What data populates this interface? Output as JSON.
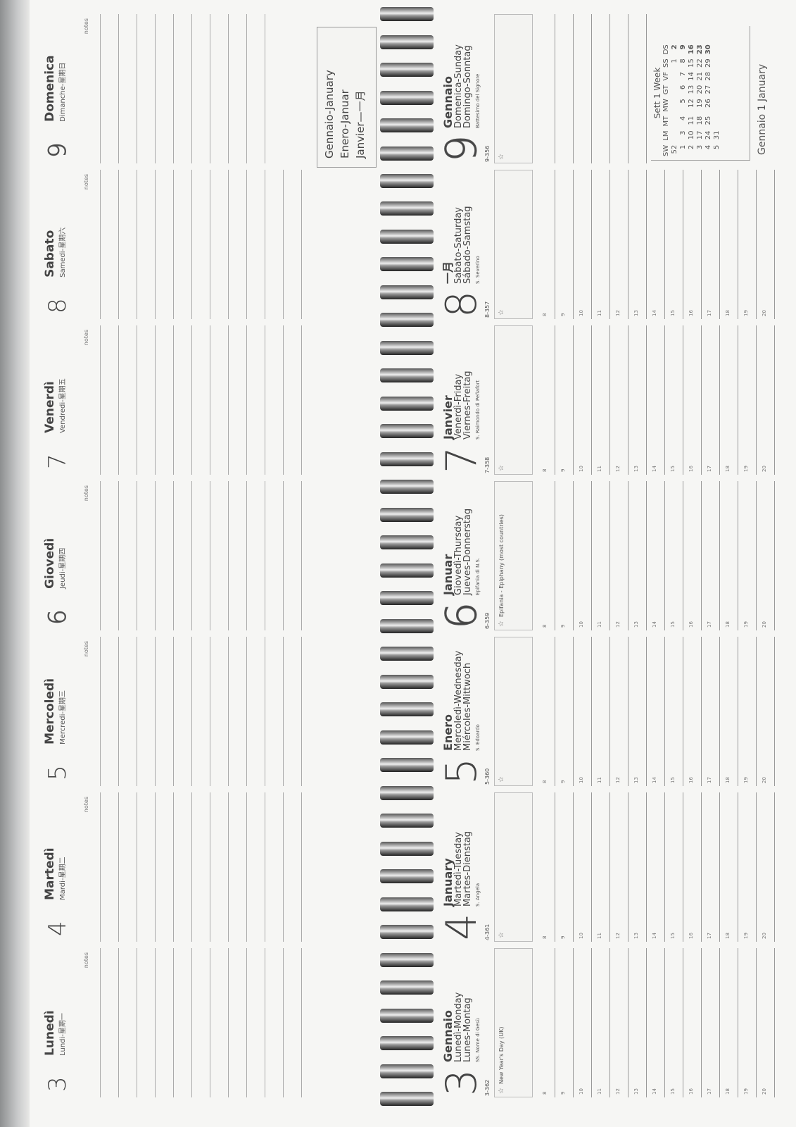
{
  "notes_label": "notes",
  "top_days": [
    {
      "num": "3",
      "name": "Lunedì",
      "sub": "Lundi-星期一",
      "hollow": false
    },
    {
      "num": "4",
      "name": "Martedì",
      "sub": "Mardi-星期二",
      "hollow": false
    },
    {
      "num": "5",
      "name": "Mercoledì",
      "sub": "Mercredi-星期三",
      "hollow": false
    },
    {
      "num": "6",
      "name": "Giovedì",
      "sub": "Jeudi-星期四",
      "hollow": true
    },
    {
      "num": "7",
      "name": "Venerdì",
      "sub": "Vendredi-星期五",
      "hollow": false
    },
    {
      "num": "8",
      "name": "Sabato",
      "sub": "Samedi-星期六",
      "hollow": false
    },
    {
      "num": "9",
      "name": "Domenica",
      "sub": "Dimanche-星期日",
      "hollow": true
    }
  ],
  "month_box": [
    "Gennaio-January",
    "Enero-Januar",
    "Janvier—一月"
  ],
  "bottom_days": [
    {
      "num": "3",
      "code": "3-362",
      "month": "Gennaio",
      "it_en": "Lunedì-Monday",
      "es_de": "Lunes-Montag",
      "saint": "SS. Nome di Gesù",
      "holiday": "New Year's Day (UK)",
      "hollow": false
    },
    {
      "num": "4",
      "code": "4-361",
      "month": "January",
      "it_en": "Martedì-Tuesday",
      "es_de": "Martes-Dienstag",
      "saint": "S. Angela",
      "holiday": "",
      "hollow": false
    },
    {
      "num": "5",
      "code": "5-360",
      "month": "Enero",
      "it_en": "Mercoledì-Wednesday",
      "es_de": "Miércoles-Mittwoch",
      "saint": "S. Edoardo",
      "holiday": "",
      "hollow": false
    },
    {
      "num": "6",
      "code": "6-359",
      "month": "Januar",
      "it_en": "Giovedì-Thursday",
      "es_de": "Jueves-Donnerstag",
      "saint": "Epifania di N.S.",
      "holiday": "Epifania - Epiphany (most countries)",
      "hollow": true
    },
    {
      "num": "7",
      "code": "7-358",
      "month": "Janvier",
      "it_en": "Venerdì-Friday",
      "es_de": "Viernes-Freitag",
      "saint": "S. Raimondo di Peñafort",
      "holiday": "",
      "hollow": false
    },
    {
      "num": "8",
      "code": "8-357",
      "month": "一月",
      "it_en": "Sabato-Saturday",
      "es_de": "Sábado-Samstag",
      "saint": "S. Severino",
      "holiday": "",
      "hollow": false
    },
    {
      "num": "9",
      "code": "9-356",
      "month": "Gennaio",
      "it_en": "Domenica-Sunday",
      "es_de": "Domingo-Sonntag",
      "saint": "Battesimo del Signore",
      "holiday": "",
      "hollow": true
    }
  ],
  "star_icon": "star-icon",
  "hours": [
    "8",
    "9",
    "10",
    "11",
    "12",
    "13",
    "14",
    "15",
    "16",
    "17",
    "18",
    "19",
    "20"
  ],
  "mini_calendar": {
    "title": "Sett 1 Week",
    "headers": [
      "SW",
      "LM",
      "MT",
      "MW",
      "GT",
      "VF",
      "SS",
      "DS"
    ],
    "rows": [
      [
        "52",
        "",
        "",
        "",
        "",
        "",
        "1",
        "2"
      ],
      [
        "1",
        "3",
        "4",
        "5",
        "6",
        "7",
        "8",
        "9"
      ],
      [
        "2",
        "10",
        "11",
        "12",
        "13",
        "14",
        "15",
        "16"
      ],
      [
        "3",
        "17",
        "18",
        "19",
        "20",
        "21",
        "22",
        "23"
      ],
      [
        "4",
        "24",
        "25",
        "26",
        "27",
        "28",
        "29",
        "30"
      ],
      [
        "5",
        "31",
        "",
        "",
        "",
        "",
        "",
        ""
      ]
    ]
  },
  "footer": "Gennaio 1 January"
}
